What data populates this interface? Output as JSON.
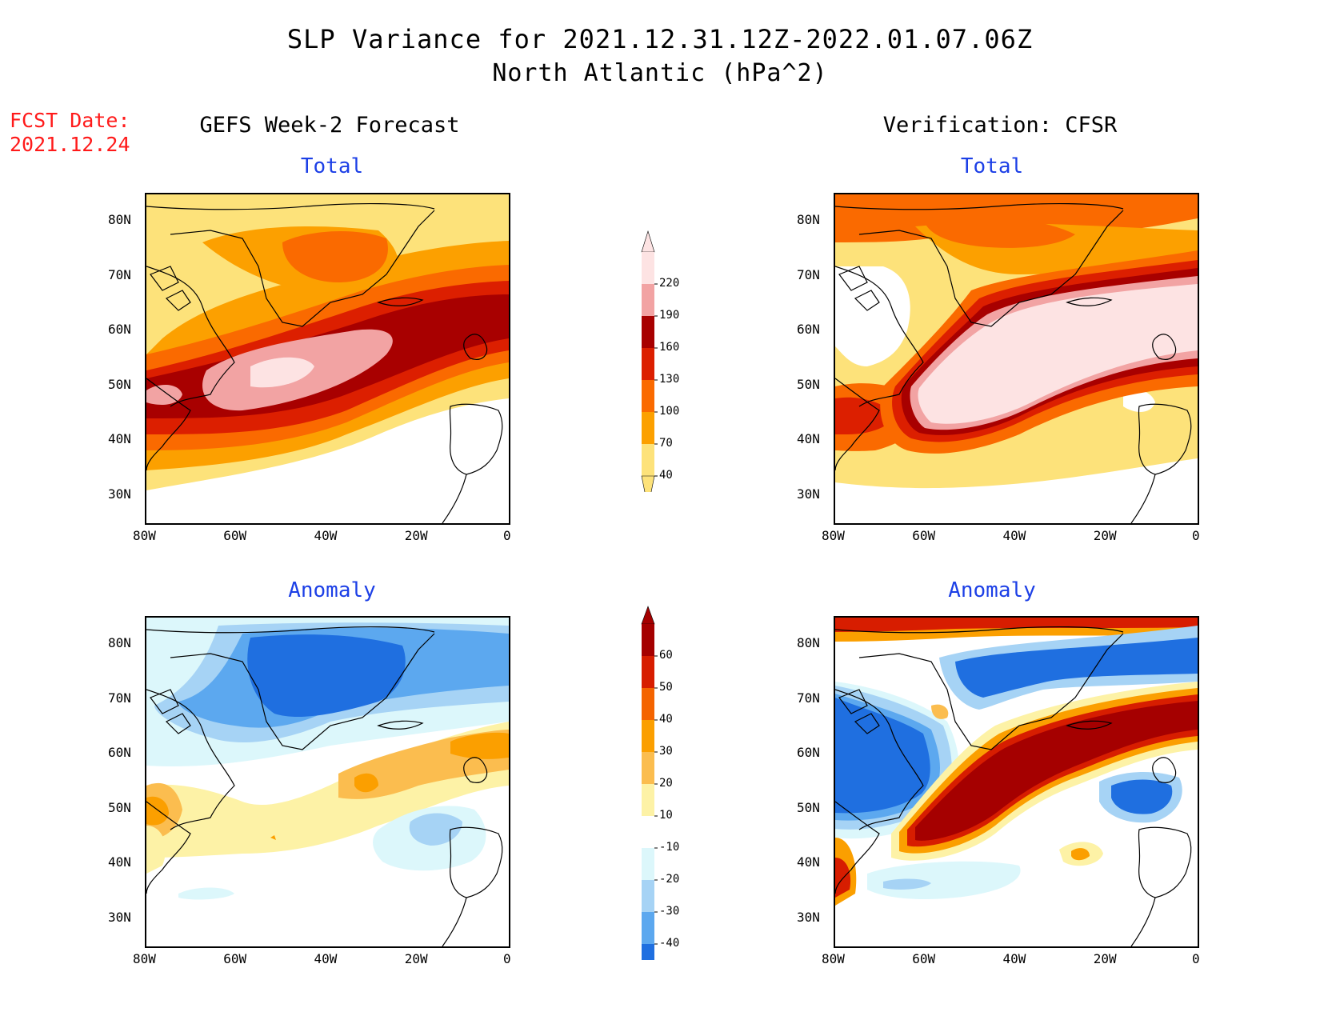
{
  "header": {
    "title": "SLP Variance for 2021.12.31.12Z-2022.01.07.06Z",
    "subtitle": "North Atlantic (hPa^2)",
    "fcst_date_label": "FCST Date:",
    "fcst_date": "2021.12.24"
  },
  "columns": {
    "left": "GEFS Week-2 Forecast",
    "right": "Verification: CFSR"
  },
  "panels": {
    "total_label": "Total",
    "anomaly_label": "Anomaly"
  },
  "axes": {
    "lat_labels": [
      "80N",
      "70N",
      "60N",
      "50N",
      "40N",
      "30N"
    ],
    "lon_labels": [
      "80W",
      "60W",
      "40W",
      "20W",
      "0"
    ],
    "lat_range": [
      25,
      85
    ],
    "lon_range": [
      -80,
      0
    ]
  },
  "colorbars": {
    "total": {
      "levels": [
        "220",
        "190",
        "160",
        "130",
        "100",
        "70",
        "40"
      ],
      "colors": [
        "#fde3e3",
        "#f2a3a3",
        "#a80000",
        "#dc1f00",
        "#fa6a00",
        "#fca000",
        "#fde27a"
      ]
    },
    "anomaly": {
      "levels": [
        "60",
        "50",
        "40",
        "30",
        "20",
        "10",
        "-10",
        "-20",
        "-30",
        "-40"
      ],
      "colors": [
        "#a50000",
        "#d71d00",
        "#f46400",
        "#fb9f00",
        "#fbbd4f",
        "#fdf2a6",
        "#ffffff",
        "#dcf7fb",
        "#a6d3f5",
        "#5ca8ef",
        "#1f6fe0"
      ]
    }
  }
}
